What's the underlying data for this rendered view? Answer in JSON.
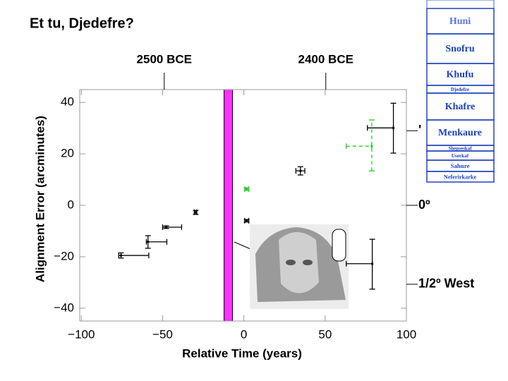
{
  "chart_data": {
    "type": "errorbar",
    "title": "Et tu, Djedefre?",
    "x_label": "Relative Time (years)",
    "y_label": "Alignment Error (arcminutes)",
    "xlim": [
      -101,
      100
    ],
    "ylim": [
      -45,
      45
    ],
    "xticks": [
      {
        "value": -100,
        "label": "−100"
      },
      {
        "value": -50,
        "label": "−50"
      },
      0,
      50,
      100
    ],
    "yticks": [
      {
        "value": -40,
        "label": "−40"
      },
      {
        "value": -20,
        "label": "−20"
      },
      0,
      20,
      40
    ],
    "top_ticks": [
      {
        "value": -49,
        "label": "2500 BCE"
      },
      {
        "value": 50.4,
        "label": "2400 BCE"
      }
    ],
    "y2lim": [
      -45,
      45
    ],
    "y2ticks": [
      {
        "value": 29,
        "label": "'"
      },
      {
        "value": 0,
        "label": "0º"
      },
      {
        "value": -30.7,
        "label": "1/2º West"
      }
    ],
    "highlight_band": [
      -12.2,
      -7
    ],
    "highlight_color": "#ff33ff",
    "series": [
      {
        "color": "#000000",
        "dash": false,
        "x": [
          -75.6,
          -59,
          -47.8,
          -29.6,
          1.7,
          34.8,
          92,
          79
        ],
        "values": [
          -19.5,
          -14.2,
          -8.5,
          -2.7,
          -6,
          13.4,
          30.1,
          -22.7
        ],
        "xmin": [
          -77,
          -60,
          -50,
          -30.5,
          0.5,
          32,
          76,
          63
        ],
        "xmax": [
          -58.5,
          -47.4,
          -38.3,
          -29,
          3,
          37.5,
          92,
          79
        ],
        "ymin": [
          -20.5,
          -16.7,
          -9,
          -3.5,
          -6.5,
          11.8,
          20.3,
          -32.6
        ],
        "ymax": [
          -18.5,
          -11.8,
          -8,
          -2,
          -5.5,
          15,
          39.7,
          -13.2
        ]
      },
      {
        "color": "#22cc22",
        "dash": true,
        "x": [
          1.7,
          78.7
        ],
        "values": [
          6.3,
          23
        ],
        "xmin": [
          0.5,
          63
        ],
        "xmax": [
          3,
          78.7
        ],
        "ymin": [
          5.8,
          13.4
        ],
        "ymax": [
          6.8,
          33.2
        ]
      }
    ]
  },
  "timeline": {
    "reigns": [
      "Huni",
      "Snofru",
      "Khufu",
      "Djedefre",
      "Khafre",
      "Menkaure",
      "Shepseskaf",
      "Userkaf",
      "Sahure",
      "Neferirkarke"
    ]
  }
}
